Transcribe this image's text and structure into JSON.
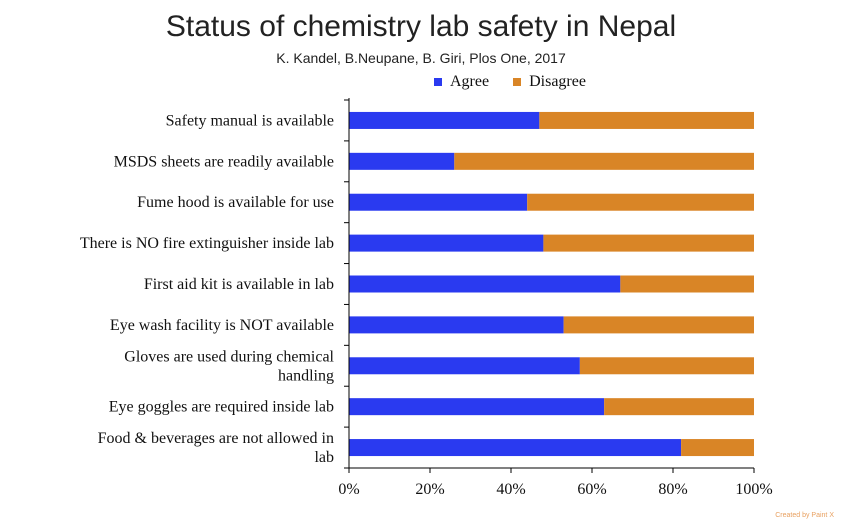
{
  "title": "Status of chemistry lab safety in Nepal",
  "subtitle": "K. Kandel, B.Neupane, B. Giri, Plos One, 2017",
  "credit": "Created by Paint X",
  "chart_data": {
    "type": "bar",
    "orientation": "horizontal",
    "stacked": true,
    "categories": [
      "Safety manual is available",
      "MSDS sheets are readily available",
      "Fume hood is available for use",
      "There is NO fire extinguisher inside lab",
      "First aid kit is available in lab",
      "Eye wash facility is NOT available",
      "Gloves are used during chemical handling",
      "Eye goggles are required inside lab",
      "Food & beverages are not allowed in lab"
    ],
    "category_lines": [
      [
        "Safety manual is available"
      ],
      [
        "MSDS sheets are readily available"
      ],
      [
        "Fume hood is available for use"
      ],
      [
        "There is NO fire extinguisher inside lab"
      ],
      [
        "First aid kit is available in lab"
      ],
      [
        "Eye wash facility is NOT available"
      ],
      [
        "Gloves are used during chemical",
        "handling"
      ],
      [
        "Eye goggles are required inside lab"
      ],
      [
        "Food & beverages are not allowed in",
        "lab"
      ]
    ],
    "series": [
      {
        "name": "Agree",
        "color": "#2a3af0",
        "values": [
          47,
          26,
          44,
          48,
          67,
          53,
          57,
          63,
          82
        ]
      },
      {
        "name": "Disagree",
        "color": "#d98526",
        "values": [
          53,
          74,
          56,
          52,
          33,
          47,
          43,
          37,
          18
        ]
      }
    ],
    "xlim": [
      0,
      100
    ],
    "x_ticks": [
      0,
      20,
      40,
      60,
      80,
      100
    ],
    "x_tick_labels": [
      "0%",
      "20%",
      "40%",
      "60%",
      "80%",
      "100%"
    ],
    "xlabel": "",
    "ylabel": "",
    "grid": false,
    "legend_position": "top"
  }
}
